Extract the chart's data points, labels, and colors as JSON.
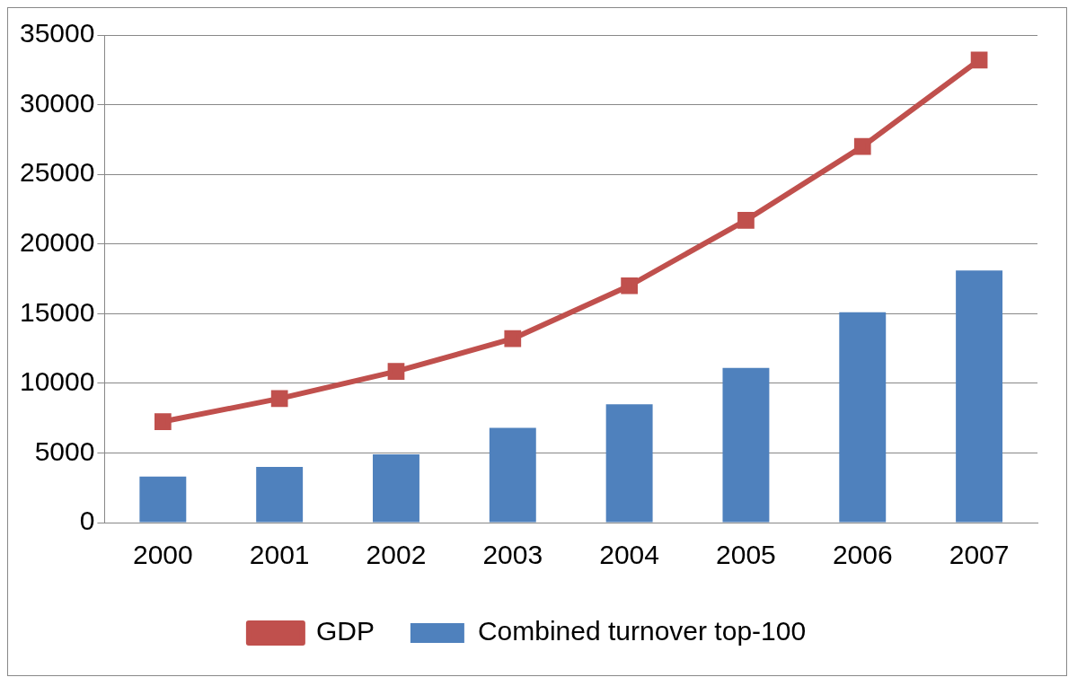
{
  "chart_data": {
    "type": "bar",
    "categories": [
      "2000",
      "2001",
      "2002",
      "2003",
      "2004",
      "2005",
      "2006",
      "2007"
    ],
    "series": [
      {
        "name": "Combined turnover top-100",
        "color": "#4f81bd",
        "values": [
          3300,
          4000,
          4900,
          6800,
          8500,
          11100,
          15100,
          18100
        ]
      },
      {
        "name": "GDP",
        "type": "line",
        "color": "#c0504d",
        "marker": "square",
        "values": [
          7250,
          8900,
          10850,
          13200,
          17000,
          21700,
          27000,
          33200
        ]
      }
    ],
    "ylim": [
      0,
      35000
    ],
    "yticks": [
      0,
      5000,
      10000,
      15000,
      20000,
      25000,
      30000,
      35000
    ],
    "grid": "y",
    "legend": "bottom"
  }
}
